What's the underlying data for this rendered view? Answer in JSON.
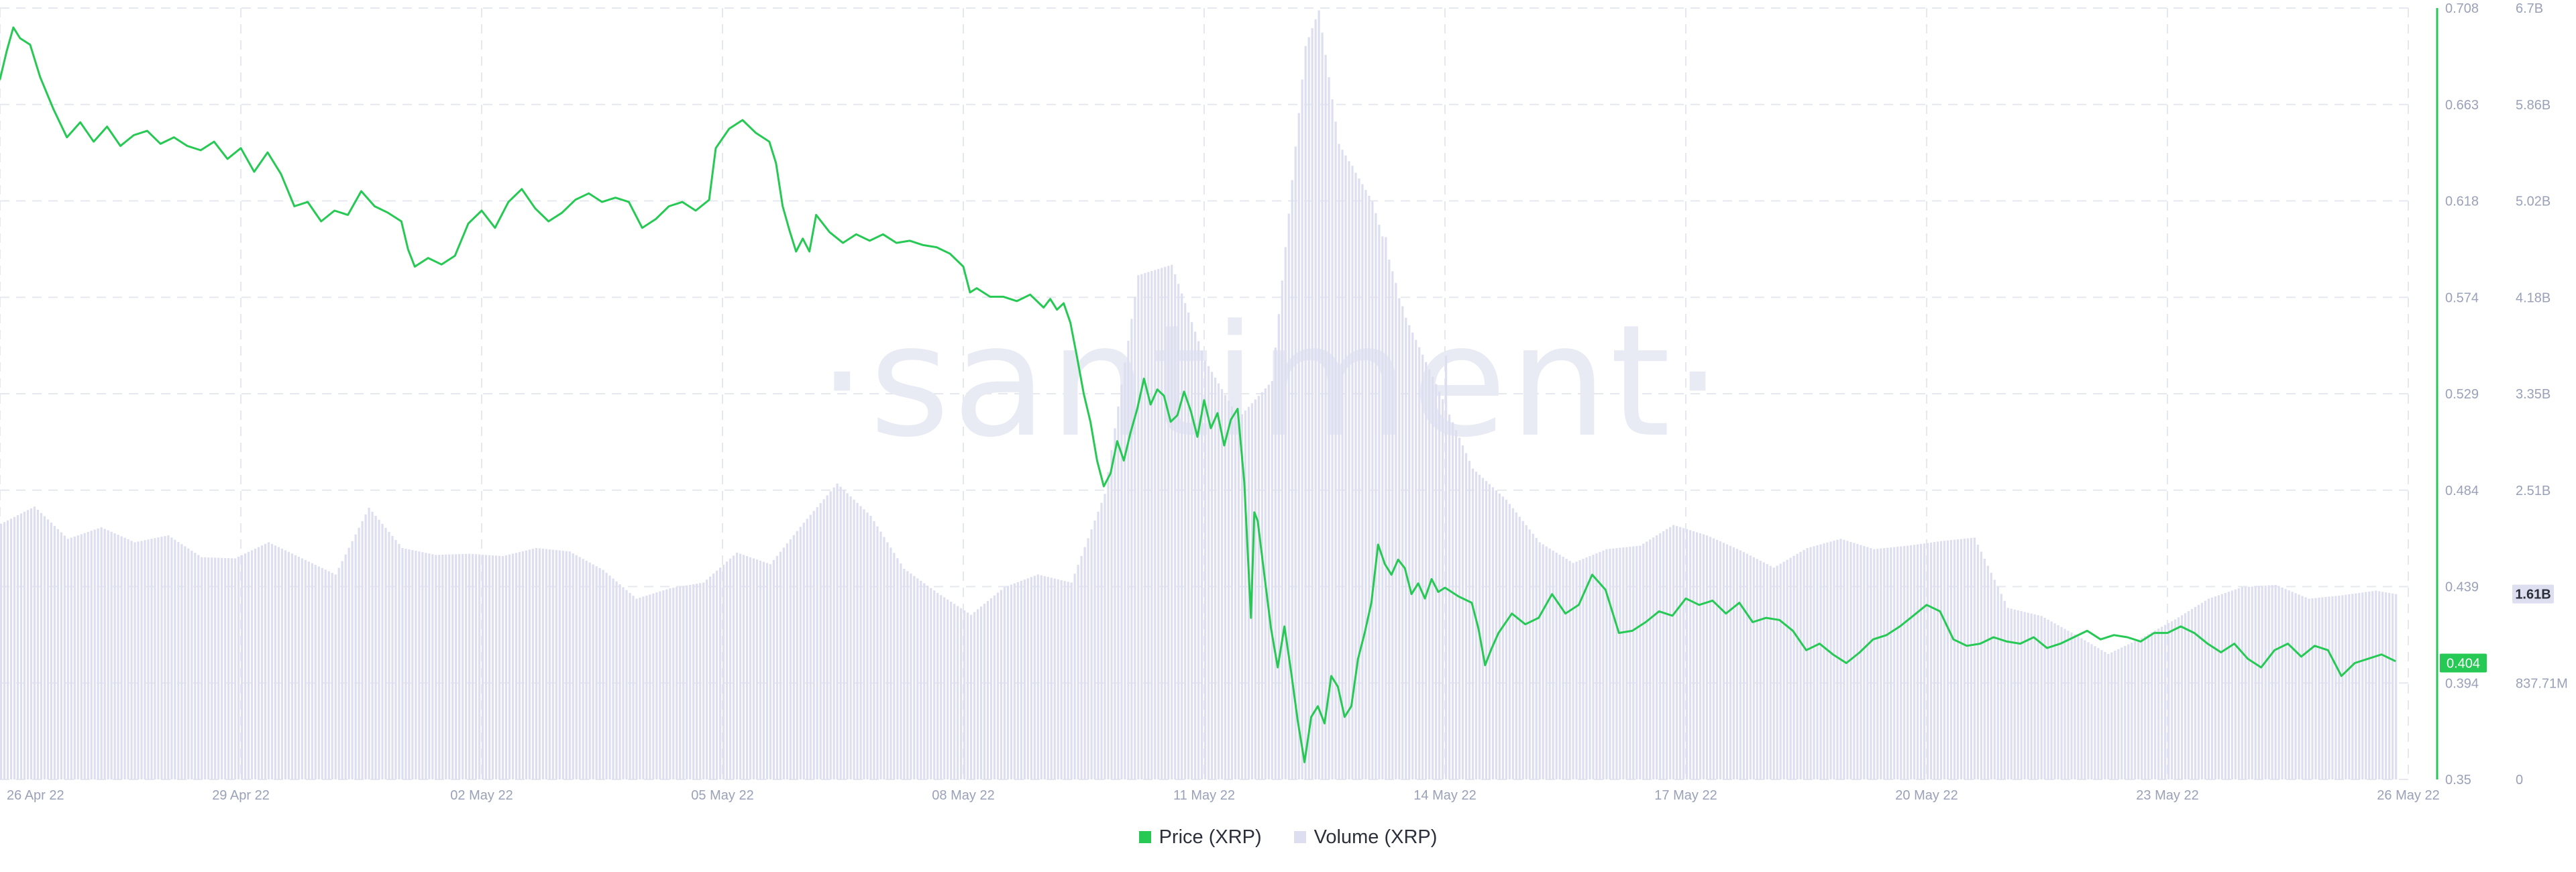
{
  "chart_data": {
    "type": "line",
    "watermark": "·santiment·",
    "x_labels": [
      "26 Apr 22",
      "29 Apr 22",
      "02 May 22",
      "05 May 22",
      "08 May 22",
      "11 May 22",
      "14 May 22",
      "17 May 22",
      "20 May 22",
      "23 May 22",
      "26 May 22"
    ],
    "price_axis": {
      "ticks": [
        "0.708",
        "0.663",
        "0.618",
        "0.574",
        "0.529",
        "0.484",
        "0.439",
        "0.394",
        "0.35"
      ],
      "range": [
        0.35,
        0.708
      ],
      "current_value": 0.404,
      "current_label": "0.404"
    },
    "volume_axis": {
      "ticks": [
        "6.7B",
        "5.86B",
        "5.02B",
        "4.18B",
        "3.35B",
        "2.51B",
        "",
        "837.71M",
        "0"
      ],
      "range": [
        0,
        6700000000
      ],
      "current_value": 1610000000,
      "current_label": "1.61B"
    },
    "series": [
      {
        "name": "Price (XRP)",
        "color": "#26c953",
        "axis": "price",
        "points": [
          [
            0,
            0.675
          ],
          [
            0.1,
            0.688
          ],
          [
            0.2,
            0.699
          ],
          [
            0.3,
            0.694
          ],
          [
            0.45,
            0.691
          ],
          [
            0.6,
            0.676
          ],
          [
            0.8,
            0.661
          ],
          [
            1.0,
            0.648
          ],
          [
            1.2,
            0.655
          ],
          [
            1.4,
            0.646
          ],
          [
            1.6,
            0.653
          ],
          [
            1.8,
            0.644
          ],
          [
            2.0,
            0.649
          ],
          [
            2.2,
            0.651
          ],
          [
            2.4,
            0.645
          ],
          [
            2.6,
            0.648
          ],
          [
            2.8,
            0.644
          ],
          [
            3.0,
            0.642
          ],
          [
            3.2,
            0.646
          ],
          [
            3.4,
            0.638
          ],
          [
            3.6,
            0.643
          ],
          [
            3.8,
            0.632
          ],
          [
            4.0,
            0.641
          ],
          [
            4.2,
            0.631
          ],
          [
            4.4,
            0.616
          ],
          [
            4.6,
            0.618
          ],
          [
            4.8,
            0.609
          ],
          [
            5.0,
            0.614
          ],
          [
            5.2,
            0.612
          ],
          [
            5.4,
            0.623
          ],
          [
            5.6,
            0.616
          ],
          [
            5.8,
            0.613
          ],
          [
            6.0,
            0.609
          ],
          [
            6.1,
            0.596
          ],
          [
            6.2,
            0.588
          ],
          [
            6.4,
            0.592
          ],
          [
            6.6,
            0.589
          ],
          [
            6.8,
            0.593
          ],
          [
            7.0,
            0.608
          ],
          [
            7.2,
            0.614
          ],
          [
            7.4,
            0.606
          ],
          [
            7.6,
            0.618
          ],
          [
            7.8,
            0.624
          ],
          [
            8.0,
            0.615
          ],
          [
            8.2,
            0.609
          ],
          [
            8.4,
            0.613
          ],
          [
            8.6,
            0.619
          ],
          [
            8.8,
            0.622
          ],
          [
            9.0,
            0.618
          ],
          [
            9.2,
            0.62
          ],
          [
            9.4,
            0.618
          ],
          [
            9.6,
            0.606
          ],
          [
            9.8,
            0.61
          ],
          [
            10.0,
            0.616
          ],
          [
            10.2,
            0.618
          ],
          [
            10.4,
            0.614
          ],
          [
            10.6,
            0.619
          ],
          [
            10.7,
            0.643
          ],
          [
            10.9,
            0.652
          ],
          [
            11.1,
            0.656
          ],
          [
            11.3,
            0.65
          ],
          [
            11.5,
            0.646
          ],
          [
            11.6,
            0.636
          ],
          [
            11.7,
            0.616
          ],
          [
            11.8,
            0.605
          ],
          [
            11.9,
            0.595
          ],
          [
            12.0,
            0.601
          ],
          [
            12.1,
            0.595
          ],
          [
            12.2,
            0.612
          ],
          [
            12.4,
            0.604
          ],
          [
            12.6,
            0.599
          ],
          [
            12.8,
            0.603
          ],
          [
            13.0,
            0.6
          ],
          [
            13.2,
            0.603
          ],
          [
            13.4,
            0.599
          ],
          [
            13.6,
            0.6
          ],
          [
            13.8,
            0.598
          ],
          [
            14.0,
            0.597
          ],
          [
            14.2,
            0.594
          ],
          [
            14.4,
            0.588
          ],
          [
            14.5,
            0.576
          ],
          [
            14.6,
            0.578
          ],
          [
            14.8,
            0.574
          ],
          [
            15.0,
            0.574
          ],
          [
            15.2,
            0.572
          ],
          [
            15.4,
            0.575
          ],
          [
            15.6,
            0.569
          ],
          [
            15.7,
            0.573
          ],
          [
            15.8,
            0.568
          ],
          [
            15.9,
            0.571
          ],
          [
            16.0,
            0.562
          ],
          [
            16.1,
            0.546
          ],
          [
            16.2,
            0.529
          ],
          [
            16.3,
            0.516
          ],
          [
            16.4,
            0.498
          ],
          [
            16.5,
            0.486
          ],
          [
            16.6,
            0.492
          ],
          [
            16.7,
            0.507
          ],
          [
            16.8,
            0.498
          ],
          [
            16.9,
            0.511
          ],
          [
            17.0,
            0.522
          ],
          [
            17.1,
            0.536
          ],
          [
            17.2,
            0.524
          ],
          [
            17.3,
            0.531
          ],
          [
            17.4,
            0.528
          ],
          [
            17.5,
            0.516
          ],
          [
            17.6,
            0.519
          ],
          [
            17.7,
            0.53
          ],
          [
            17.8,
            0.521
          ],
          [
            17.9,
            0.509
          ],
          [
            18.0,
            0.526
          ],
          [
            18.1,
            0.513
          ],
          [
            18.2,
            0.52
          ],
          [
            18.3,
            0.505
          ],
          [
            18.4,
            0.517
          ],
          [
            18.5,
            0.522
          ],
          [
            18.6,
            0.488
          ],
          [
            18.7,
            0.425
          ],
          [
            18.75,
            0.474
          ],
          [
            18.8,
            0.47
          ],
          [
            18.9,
            0.445
          ],
          [
            19.0,
            0.42
          ],
          [
            19.1,
            0.402
          ],
          [
            19.2,
            0.421
          ],
          [
            19.3,
            0.4
          ],
          [
            19.4,
            0.377
          ],
          [
            19.5,
            0.358
          ],
          [
            19.6,
            0.379
          ],
          [
            19.7,
            0.384
          ],
          [
            19.8,
            0.376
          ],
          [
            19.9,
            0.398
          ],
          [
            20.0,
            0.393
          ],
          [
            20.1,
            0.379
          ],
          [
            20.2,
            0.384
          ],
          [
            20.3,
            0.406
          ],
          [
            20.4,
            0.418
          ],
          [
            20.5,
            0.432
          ],
          [
            20.6,
            0.459
          ],
          [
            20.7,
            0.45
          ],
          [
            20.8,
            0.445
          ],
          [
            20.9,
            0.452
          ],
          [
            21.0,
            0.448
          ],
          [
            21.1,
            0.436
          ],
          [
            21.2,
            0.441
          ],
          [
            21.3,
            0.434
          ],
          [
            21.4,
            0.443
          ],
          [
            21.5,
            0.437
          ],
          [
            21.6,
            0.439
          ],
          [
            21.8,
            0.435
          ],
          [
            22.0,
            0.432
          ],
          [
            22.1,
            0.42
          ],
          [
            22.2,
            0.403
          ],
          [
            22.3,
            0.411
          ],
          [
            22.4,
            0.418
          ],
          [
            22.6,
            0.427
          ],
          [
            22.8,
            0.422
          ],
          [
            23.0,
            0.425
          ],
          [
            23.2,
            0.436
          ],
          [
            23.4,
            0.427
          ],
          [
            23.6,
            0.431
          ],
          [
            23.8,
            0.445
          ],
          [
            24.0,
            0.438
          ],
          [
            24.2,
            0.418
          ],
          [
            24.4,
            0.419
          ],
          [
            24.6,
            0.423
          ],
          [
            24.8,
            0.428
          ],
          [
            25.0,
            0.426
          ],
          [
            25.2,
            0.434
          ],
          [
            25.4,
            0.431
          ],
          [
            25.6,
            0.433
          ],
          [
            25.8,
            0.427
          ],
          [
            26.0,
            0.432
          ],
          [
            26.2,
            0.423
          ],
          [
            26.4,
            0.425
          ],
          [
            26.6,
            0.424
          ],
          [
            26.8,
            0.419
          ],
          [
            27.0,
            0.41
          ],
          [
            27.2,
            0.413
          ],
          [
            27.4,
            0.408
          ],
          [
            27.6,
            0.404
          ],
          [
            27.8,
            0.409
          ],
          [
            28.0,
            0.415
          ],
          [
            28.2,
            0.417
          ],
          [
            28.4,
            0.421
          ],
          [
            28.6,
            0.426
          ],
          [
            28.8,
            0.431
          ],
          [
            29.0,
            0.428
          ],
          [
            29.2,
            0.415
          ],
          [
            29.4,
            0.412
          ],
          [
            29.6,
            0.413
          ],
          [
            29.8,
            0.416
          ],
          [
            30.0,
            0.414
          ],
          [
            30.2,
            0.413
          ],
          [
            30.4,
            0.416
          ],
          [
            30.6,
            0.411
          ],
          [
            30.8,
            0.413
          ],
          [
            31.0,
            0.416
          ],
          [
            31.2,
            0.419
          ],
          [
            31.4,
            0.415
          ],
          [
            31.6,
            0.417
          ],
          [
            31.8,
            0.416
          ],
          [
            32.0,
            0.414
          ],
          [
            32.2,
            0.418
          ],
          [
            32.4,
            0.418
          ],
          [
            32.6,
            0.421
          ],
          [
            32.8,
            0.418
          ],
          [
            33.0,
            0.413
          ],
          [
            33.2,
            0.409
          ],
          [
            33.4,
            0.413
          ],
          [
            33.6,
            0.406
          ],
          [
            33.8,
            0.402
          ],
          [
            34.0,
            0.41
          ],
          [
            34.2,
            0.413
          ],
          [
            34.4,
            0.407
          ],
          [
            34.6,
            0.412
          ],
          [
            34.8,
            0.41
          ],
          [
            35.0,
            0.398
          ],
          [
            35.2,
            0.404
          ],
          [
            35.4,
            0.406
          ],
          [
            35.6,
            0.408
          ],
          [
            35.8,
            0.405
          ]
        ]
      },
      {
        "name": "Volume (XRP)",
        "color": "#dddff0",
        "axis": "volume",
        "points": [
          [
            0,
            2.22
          ],
          [
            0.5,
            2.37
          ],
          [
            1.0,
            2.09
          ],
          [
            1.5,
            2.19
          ],
          [
            2.0,
            2.06
          ],
          [
            2.5,
            2.12
          ],
          [
            3.0,
            1.93
          ],
          [
            3.5,
            1.92
          ],
          [
            4.0,
            2.06
          ],
          [
            4.5,
            1.92
          ],
          [
            5.0,
            1.78
          ],
          [
            5.5,
            2.36
          ],
          [
            6.0,
            2.01
          ],
          [
            6.5,
            1.95
          ],
          [
            7.0,
            1.96
          ],
          [
            7.5,
            1.94
          ],
          [
            8.0,
            2.01
          ],
          [
            8.5,
            1.98
          ],
          [
            9.0,
            1.82
          ],
          [
            9.5,
            1.57
          ],
          [
            10.0,
            1.66
          ],
          [
            10.5,
            1.71
          ],
          [
            11.0,
            1.97
          ],
          [
            11.5,
            1.87
          ],
          [
            12.0,
            2.23
          ],
          [
            12.5,
            2.57
          ],
          [
            13.0,
            2.29
          ],
          [
            13.5,
            1.83
          ],
          [
            14.0,
            1.62
          ],
          [
            14.5,
            1.43
          ],
          [
            15.0,
            1.67
          ],
          [
            15.5,
            1.78
          ],
          [
            16.0,
            1.71
          ],
          [
            16.5,
            2.48
          ],
          [
            17.0,
            4.38
          ],
          [
            17.5,
            4.47
          ],
          [
            18.0,
            3.64
          ],
          [
            18.5,
            3.14
          ],
          [
            19.0,
            3.46
          ],
          [
            19.5,
            6.37
          ],
          [
            19.7,
            6.68
          ],
          [
            20.0,
            5.52
          ],
          [
            20.5,
            5.02
          ],
          [
            21.0,
            4.01
          ],
          [
            21.5,
            3.37
          ],
          [
            22.0,
            2.7
          ],
          [
            22.5,
            2.43
          ],
          [
            23.0,
            2.06
          ],
          [
            23.5,
            1.88
          ],
          [
            24.0,
            2.0
          ],
          [
            24.5,
            2.03
          ],
          [
            25.0,
            2.21
          ],
          [
            25.5,
            2.12
          ],
          [
            26.0,
            1.99
          ],
          [
            26.5,
            1.84
          ],
          [
            27.0,
            2.01
          ],
          [
            27.5,
            2.09
          ],
          [
            28.0,
            2.0
          ],
          [
            28.5,
            2.03
          ],
          [
            29.0,
            2.07
          ],
          [
            29.5,
            2.1
          ],
          [
            30.0,
            1.49
          ],
          [
            30.5,
            1.42
          ],
          [
            31.0,
            1.26
          ],
          [
            31.5,
            1.09
          ],
          [
            32.0,
            1.23
          ],
          [
            32.5,
            1.39
          ],
          [
            33.0,
            1.57
          ],
          [
            33.5,
            1.67
          ],
          [
            34.0,
            1.69
          ],
          [
            34.5,
            1.57
          ],
          [
            35.0,
            1.6
          ],
          [
            35.5,
            1.64
          ],
          [
            35.8,
            1.61
          ]
        ],
        "spikes": [
          [
            20.2,
            5.33
          ],
          [
            20.7,
            4.71
          ],
          [
            20.9,
            4.18
          ],
          [
            21.6,
            3.68
          ]
        ]
      }
    ],
    "legend": {
      "position": "bottom-center",
      "items": [
        {
          "label": "Price (XRP)",
          "color": "#26c953"
        },
        {
          "label": "Volume (XRP)",
          "color": "#dddff0"
        }
      ]
    },
    "x_range": [
      0,
      36
    ],
    "grid": true
  }
}
